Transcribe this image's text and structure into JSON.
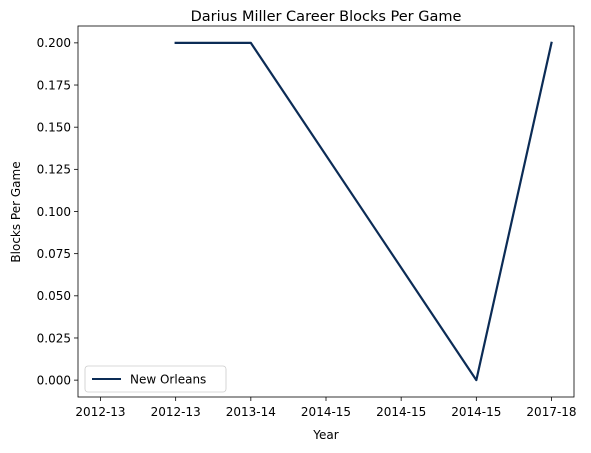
{
  "chart_data": {
    "type": "line",
    "title": "Darius Miller Career Blocks Per Game",
    "xlabel": "Year",
    "ylabel": "Blocks Per Game",
    "categories": [
      "2012-13",
      "2012-13",
      "2013-14",
      "2014-15",
      "2014-15",
      "2014-15",
      "2017-18"
    ],
    "x_ticks": [
      "2012-13",
      "2012-13",
      "2013-14",
      "2014-15",
      "2014-15",
      "2014-15",
      "2017-18"
    ],
    "y_ticks": [
      "0.000",
      "0.025",
      "0.050",
      "0.075",
      "0.100",
      "0.125",
      "0.150",
      "0.175",
      "0.200"
    ],
    "ylim": [
      -0.01,
      0.21
    ],
    "grid": false,
    "legend_position": "lower-left",
    "series": [
      {
        "name": "New Orleans",
        "color": "#0c2c56",
        "points": [
          {
            "x": "2012-13",
            "y": 0.2
          },
          {
            "x": "2013-14",
            "y": 0.2
          },
          {
            "x": "2014-15",
            "y": 0.0
          },
          {
            "x": "2017-18",
            "y": 0.2
          }
        ]
      }
    ]
  }
}
